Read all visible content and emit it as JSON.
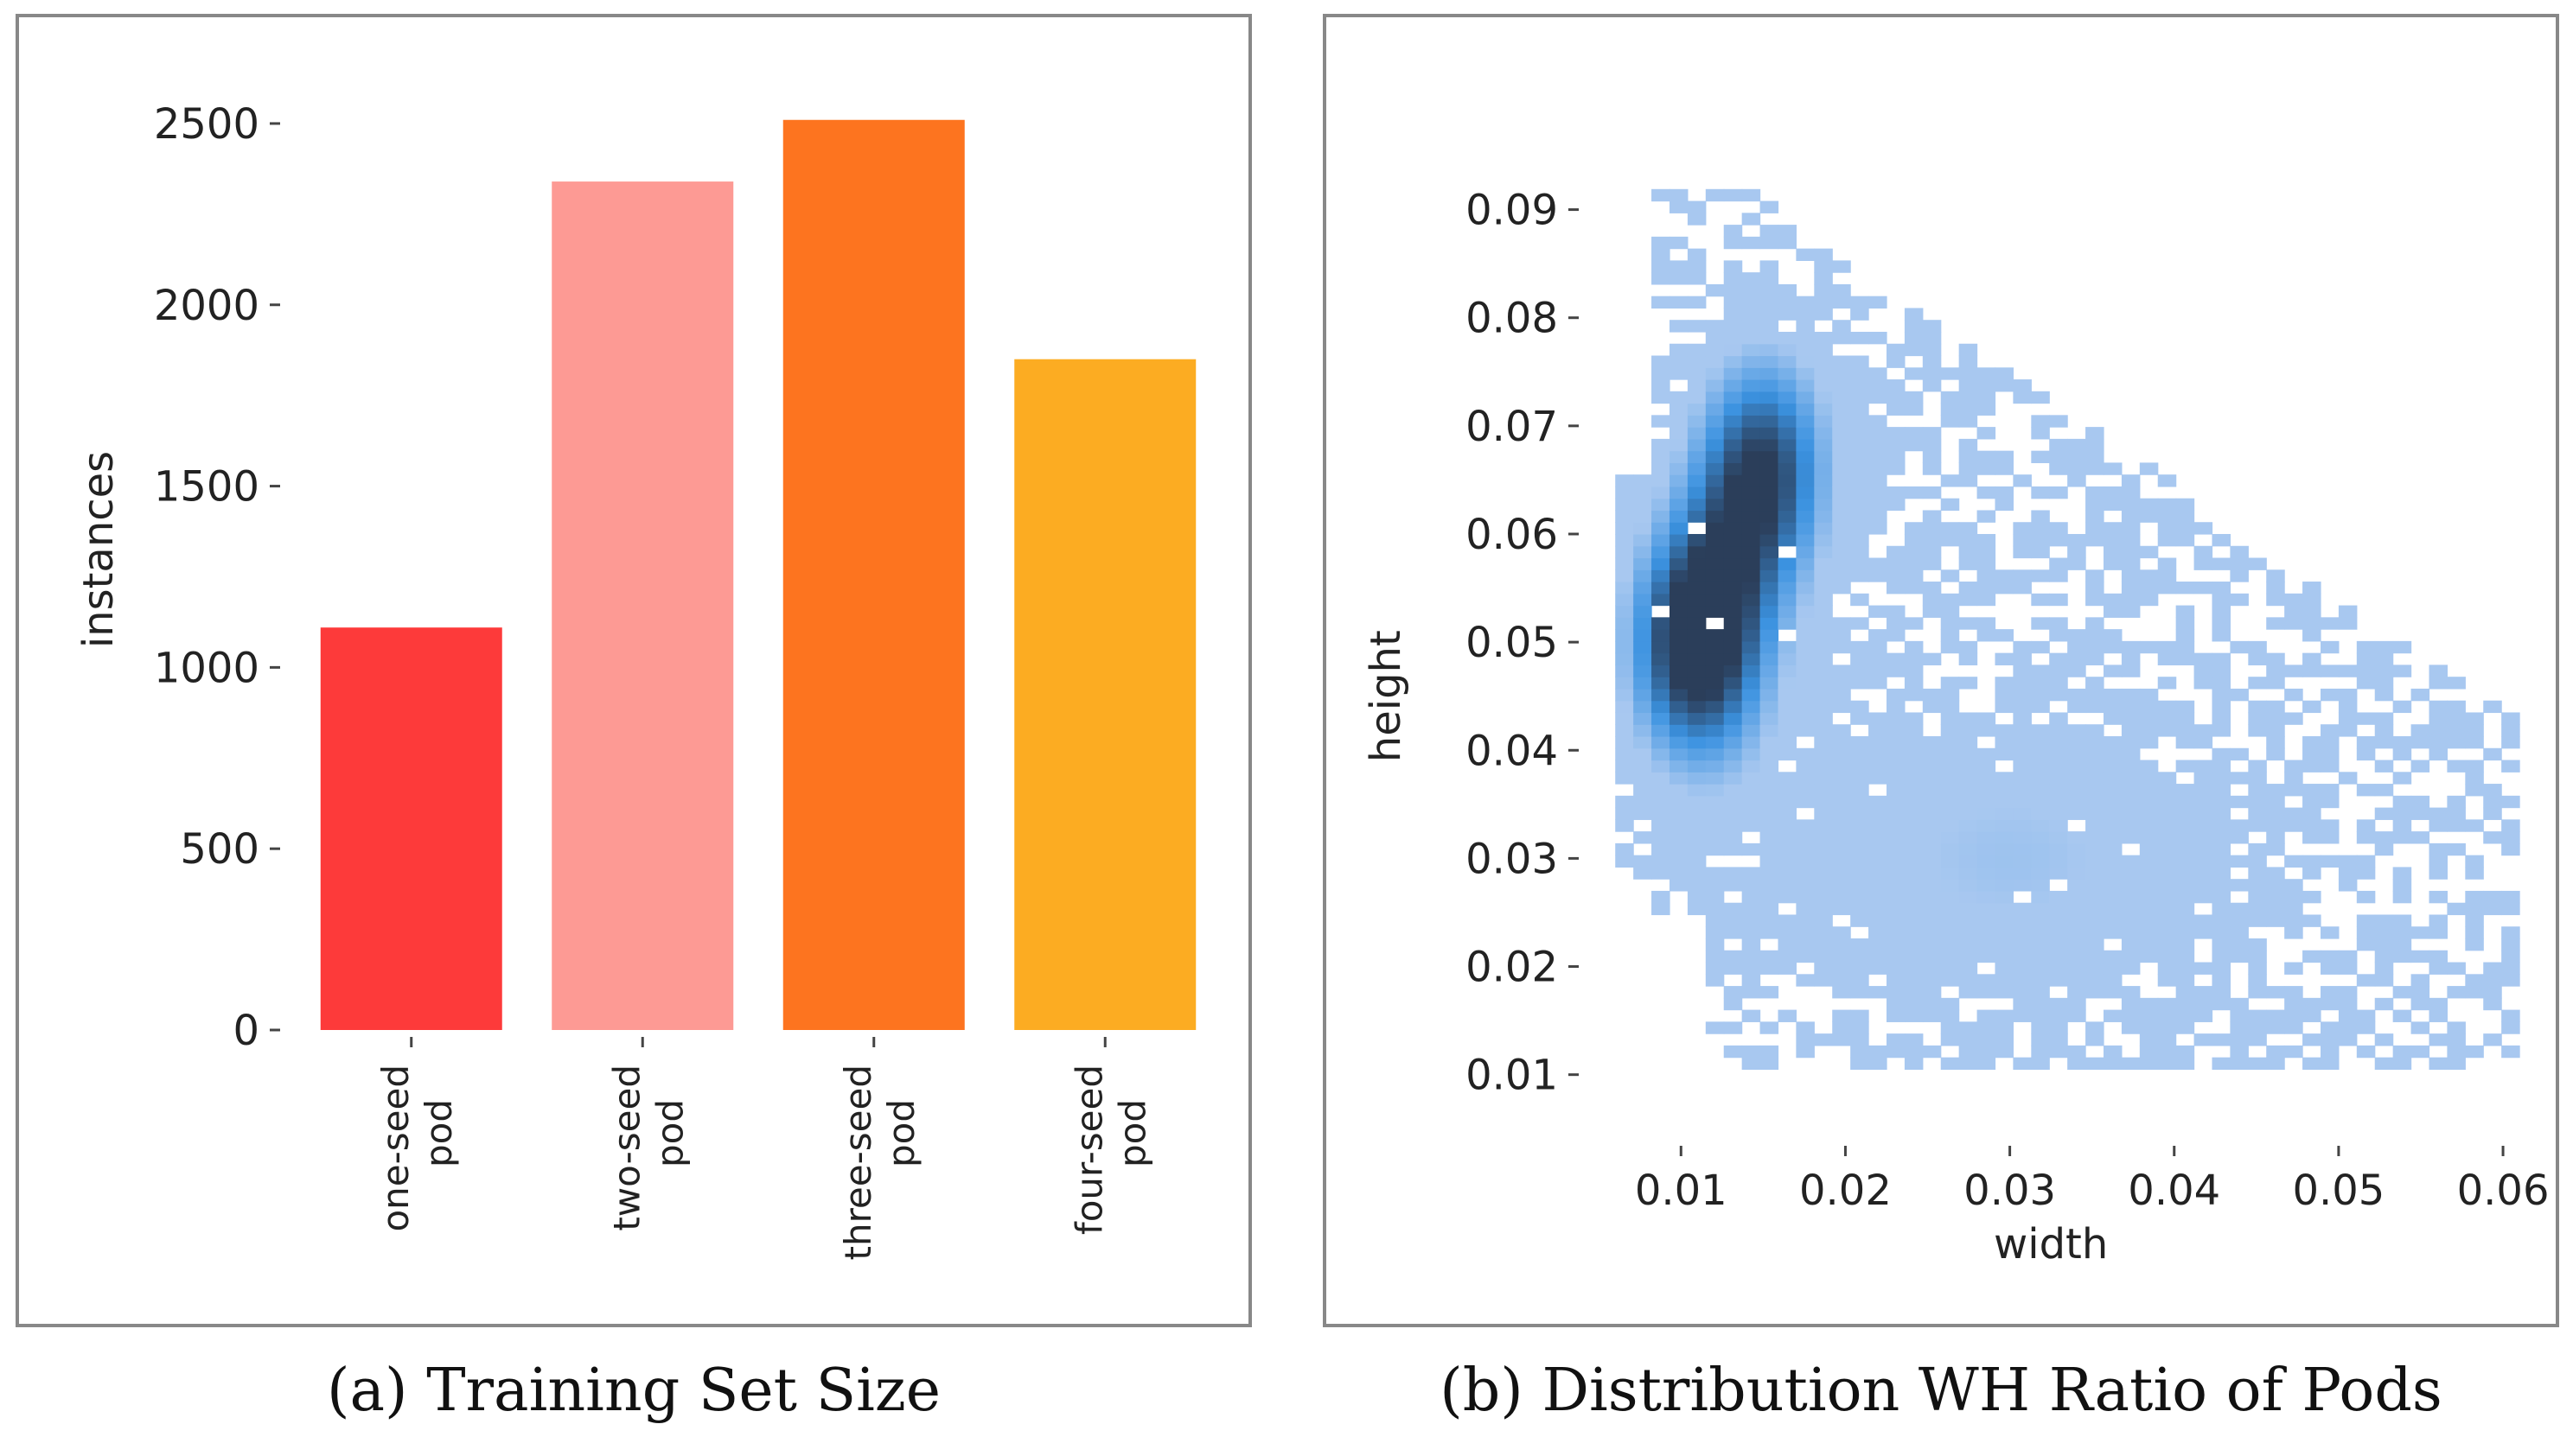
{
  "chart_data": [
    {
      "type": "bar",
      "title": "",
      "caption": "(a) Training Set Size",
      "ylabel": "instances",
      "xlabel": "",
      "ylim": [
        0,
        2650
      ],
      "yticks": [
        0,
        500,
        1000,
        1500,
        2000,
        2500
      ],
      "categories": [
        {
          "line1": "one-seed",
          "line2": "pod"
        },
        {
          "line1": "two-seed",
          "line2": "pod"
        },
        {
          "line1": "three-seed",
          "line2": "pod"
        },
        {
          "line1": "four-seed",
          "line2": "pod"
        }
      ],
      "values": [
        1110,
        2340,
        2510,
        1850
      ],
      "colors": [
        "#fd3a3a",
        "#fd9a94",
        "#fd741f",
        "#fcac22"
      ]
    },
    {
      "type": "heatmap",
      "title": "",
      "caption": "(b) Distribution WH Ratio of Pods",
      "xlabel": "width",
      "ylabel": "height",
      "xlim": [
        0.0042,
        0.0631
      ],
      "ylim": [
        0.0047,
        0.0958
      ],
      "xticks": [
        "0.01",
        "0.02",
        "0.03",
        "0.04",
        "0.05",
        "0.06"
      ],
      "yticks": [
        "0.01",
        "0.02",
        "0.03",
        "0.04",
        "0.05",
        "0.06",
        "0.07",
        "0.08",
        "0.09"
      ],
      "bin_size": 0.0011,
      "colors": {
        "low": "#a8c8f0",
        "mid": "#3b92e0",
        "high": "#2b3e5a"
      },
      "density_centers": [
        {
          "x": 0.011,
          "y": 0.05,
          "weight": 3.0
        },
        {
          "x": 0.015,
          "y": 0.066,
          "weight": 2.5
        },
        {
          "x": 0.03,
          "y": 0.03,
          "weight": 1.0
        }
      ]
    }
  ]
}
